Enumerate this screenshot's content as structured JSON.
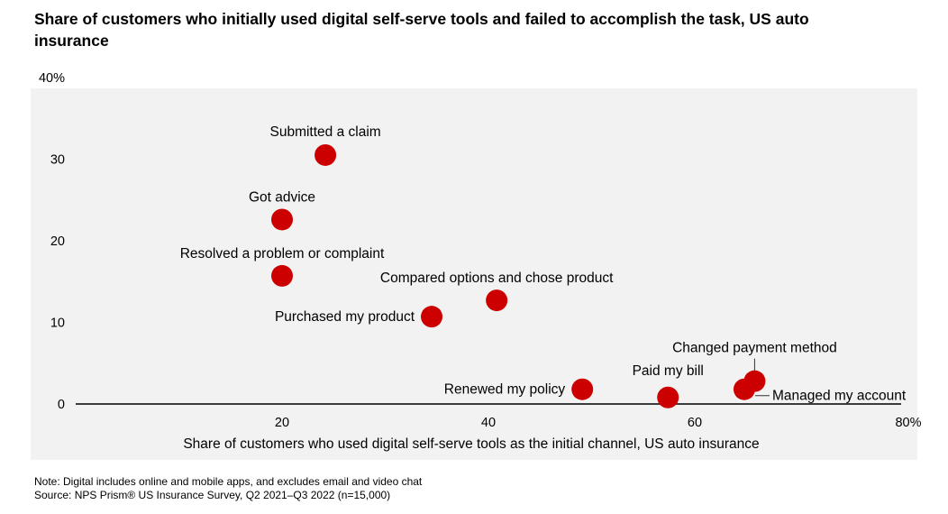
{
  "colors": {
    "background": "#f2f2f2",
    "point": "#cc0000",
    "axis": "#000000"
  },
  "note": "Note: Digital includes online and mobile apps, and excludes email and video chat",
  "source": "Source: NPS Prism® US Insurance Survey, Q2 2021–Q3 2022 (n=15,000)",
  "chart_data": {
    "type": "scatter",
    "title": "Share of customers who initially used digital self-serve tools and failed to accomplish the task, US auto insurance",
    "xlabel": "Share of customers who used digital self-serve tools as the initial channel, US auto insurance",
    "ylabel": "",
    "xlim": [
      0,
      80
    ],
    "ylim": [
      0,
      40
    ],
    "x_ticks": [
      {
        "value": 20,
        "label": "20"
      },
      {
        "value": 40,
        "label": "40"
      },
      {
        "value": 60,
        "label": "60"
      },
      {
        "value": 80,
        "label": "80%"
      }
    ],
    "y_ticks": [
      {
        "value": 0,
        "label": "0"
      },
      {
        "value": 10,
        "label": "10"
      },
      {
        "value": 20,
        "label": "20"
      },
      {
        "value": 30,
        "label": "30"
      },
      {
        "value": 40,
        "label": "40%"
      }
    ],
    "points": [
      {
        "label": "Submitted a claim",
        "x": 24.2,
        "y": 30.5
      },
      {
        "label": "Got advice",
        "x": 20.0,
        "y": 22.6
      },
      {
        "label": "Resolved a problem or complaint",
        "x": 20.0,
        "y": 15.7
      },
      {
        "label": "Compared options and chose product",
        "x": 40.8,
        "y": 12.7
      },
      {
        "label": "Purchased my product",
        "x": 34.5,
        "y": 10.7
      },
      {
        "label": "Renewed my policy",
        "x": 49.1,
        "y": 1.8
      },
      {
        "label": "Paid my bill",
        "x": 57.4,
        "y": 0.8
      },
      {
        "label": "Changed payment method",
        "x": 65.8,
        "y": 2.8
      },
      {
        "label": "Managed my account",
        "x": 64.8,
        "y": 1.8
      }
    ]
  }
}
